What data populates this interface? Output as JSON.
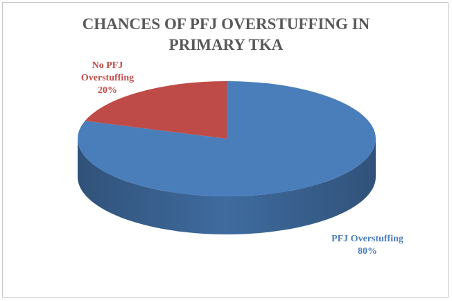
{
  "chart_data": {
    "type": "pie",
    "title": "CHANCES OF PFJ OVERSTUFFING  IN PRIMARY TKA",
    "categories": [
      "PFJ Overstuffing",
      "No PFJ Overstuffing"
    ],
    "values": [
      80,
      20
    ],
    "value_labels": [
      "80%",
      "20%"
    ],
    "colors": [
      "#4a7ebb",
      "#be4b48"
    ]
  }
}
